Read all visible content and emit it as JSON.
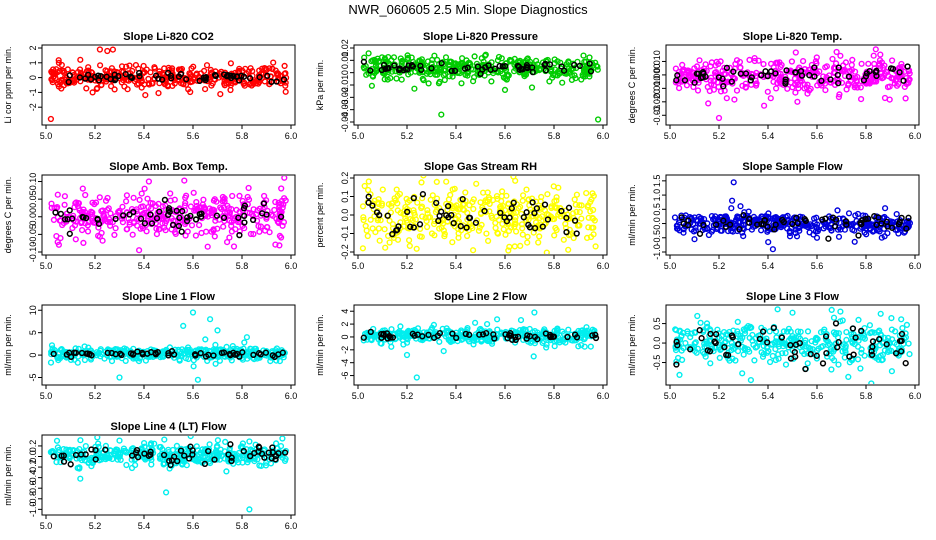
{
  "title": "NWR_060605  2.5 Min. Slope Diagnostics",
  "chart_data": [
    {
      "type": "scatter",
      "title": "Slope Li-820 CO2",
      "ylabel": "Li cor ppm per min.",
      "color": "#ff0000",
      "xlim": [
        5.0,
        6.0
      ],
      "ylim": [
        -3.0,
        2.0
      ],
      "xticks": [
        "5.0",
        "5.2",
        "5.4",
        "5.6",
        "5.8",
        "6.0"
      ],
      "yticks": [
        {
          "v": -2,
          "l": "-2"
        },
        {
          "v": -1,
          "l": "-1"
        },
        {
          "v": 0,
          "l": "0"
        },
        {
          "v": 1,
          "l": "1"
        },
        {
          "v": 2,
          "l": "2"
        }
      ],
      "center": 0.0,
      "spread": 0.35,
      "spread_black": 0.15,
      "outliers": [
        [
          5.02,
          -2.8
        ],
        [
          5.22,
          1.9
        ],
        [
          5.25,
          1.8
        ],
        [
          5.19,
          -1.0
        ],
        [
          5.28,
          -0.8
        ],
        [
          5.14,
          1.2
        ],
        [
          5.32,
          -0.6
        ]
      ]
    },
    {
      "type": "scatter",
      "title": "Slope Li-820 Pressure",
      "ylabel": "kPa per min.",
      "color": "#00cc00",
      "xlim": [
        5.0,
        6.0
      ],
      "ylim": [
        -0.04,
        0.02
      ],
      "xticks": [
        "5.0",
        "5.2",
        "5.4",
        "5.6",
        "5.8",
        "6.0"
      ],
      "yticks": [
        {
          "v": -0.04,
          "l": "-0.04"
        },
        {
          "v": -0.03,
          "l": "-0.03"
        },
        {
          "v": -0.02,
          "l": "-0.02"
        },
        {
          "v": -0.01,
          "l": "-0.01"
        },
        {
          "v": 0,
          "l": "0"
        },
        {
          "v": 0.01,
          "l": "0.01"
        },
        {
          "v": 0.02,
          "l": "0.02"
        }
      ],
      "center": 0.004,
      "spread": 0.005,
      "spread_black": 0.002,
      "outliers": [
        [
          5.34,
          -0.034
        ],
        [
          5.98,
          -0.038
        ],
        [
          5.23,
          -0.013
        ],
        [
          5.71,
          -0.012
        ],
        [
          5.6,
          -0.014
        ]
      ]
    },
    {
      "type": "scatter",
      "title": "Slope Li-820 Temp.",
      "ylabel": "degrees C per min.",
      "color": "#ff00ff",
      "xlim": [
        5.0,
        6.0
      ],
      "ylim": [
        -0.035,
        0.02
      ],
      "xticks": [
        "5.0",
        "5.2",
        "5.4",
        "5.6",
        "5.8",
        "6.0"
      ],
      "yticks": [
        {
          "v": -0.03,
          "l": "-0.03"
        },
        {
          "v": -0.02,
          "l": "-0.020"
        },
        {
          "v": -0.01,
          "l": "-0.010"
        },
        {
          "v": 0,
          "l": "0.000"
        },
        {
          "v": 0.01,
          "l": "0.010"
        }
      ],
      "center": 0.0,
      "spread": 0.006,
      "spread_black": 0.003,
      "outliers": [
        [
          5.2,
          -0.032
        ],
        [
          5.84,
          0.019
        ],
        [
          5.68,
          0.017
        ],
        [
          5.78,
          -0.018
        ],
        [
          5.52,
          -0.02
        ]
      ]
    },
    {
      "type": "scatter",
      "title": "Slope Amb. Box Temp.",
      "ylabel": "degrees C per min.",
      "color": "#ff00ff",
      "xlim": [
        5.0,
        6.0
      ],
      "ylim": [
        -0.1,
        0.11
      ],
      "xticks": [
        "5.0",
        "5.2",
        "5.4",
        "5.6",
        "5.8",
        "6.0"
      ],
      "yticks": [
        {
          "v": -0.1,
          "l": "-0.10"
        },
        {
          "v": -0.05,
          "l": "-0.05"
        },
        {
          "v": 0,
          "l": "0.00"
        },
        {
          "v": 0.05,
          "l": "0.05"
        },
        {
          "v": 0.1,
          "l": "0.10"
        }
      ],
      "center": 0.0,
      "spread": 0.03,
      "spread_black": 0.02,
      "outliers": [
        [
          5.42,
          0.1
        ],
        [
          5.38,
          -0.095
        ],
        [
          5.66,
          -0.085
        ],
        [
          5.15,
          0.08
        ]
      ]
    },
    {
      "type": "scatter",
      "title": "Slope Gas Stream RH",
      "ylabel": "percent per min.",
      "color": "#ffff00",
      "xlim": [
        5.0,
        6.0
      ],
      "ylim": [
        -0.2,
        0.2
      ],
      "xticks": [
        "5.0",
        "5.2",
        "5.4",
        "5.6",
        "5.8",
        "6.0"
      ],
      "yticks": [
        {
          "v": -0.2,
          "l": "-0.2"
        },
        {
          "v": -0.1,
          "l": "-0.1"
        },
        {
          "v": 0,
          "l": "0.0"
        },
        {
          "v": 0.1,
          "l": "0.1"
        },
        {
          "v": 0.2,
          "l": "0.2"
        }
      ],
      "center": 0.0,
      "spread": 0.08,
      "spread_black": 0.06,
      "outliers": [
        [
          5.02,
          -0.18
        ],
        [
          5.47,
          -0.19
        ],
        [
          5.97,
          -0.17
        ],
        [
          5.36,
          0.18
        ]
      ]
    },
    {
      "type": "scatter",
      "title": "Slope Sample Flow",
      "ylabel": "ml/min per min.",
      "color": "#0000dd",
      "xlim": [
        5.0,
        6.0
      ],
      "ylim": [
        -1.0,
        1.6
      ],
      "xticks": [
        "5.0",
        "5.2",
        "5.4",
        "5.6",
        "5.8",
        "6.0"
      ],
      "yticks": [
        {
          "v": -1,
          "l": "-1.0"
        },
        {
          "v": -0.5,
          "l": "-0.5"
        },
        {
          "v": 0,
          "l": "0.0"
        },
        {
          "v": 0.5,
          "l": "0.5"
        },
        {
          "v": 1,
          "l": "1.0"
        },
        {
          "v": 1.5,
          "l": "1.5"
        }
      ],
      "center": 0.0,
      "spread": 0.18,
      "spread_black": 0.15,
      "outliers": [
        [
          5.26,
          1.45
        ],
        [
          5.42,
          -0.9
        ],
        [
          5.1,
          -0.55
        ],
        [
          5.6,
          -0.5
        ]
      ]
    },
    {
      "type": "scatter",
      "title": "Slope Line 1 Flow",
      "ylabel": "ml/min per min.",
      "color": "#00eeee",
      "xlim": [
        5.0,
        6.0
      ],
      "ylim": [
        -6.0,
        10.5
      ],
      "xticks": [
        "5.0",
        "5.2",
        "5.4",
        "5.6",
        "5.8",
        "6.0"
      ],
      "yticks": [
        {
          "v": -5,
          "l": "-5"
        },
        {
          "v": 0,
          "l": "0"
        },
        {
          "v": 5,
          "l": "5"
        },
        {
          "v": 10,
          "l": "10"
        }
      ],
      "center": 0.3,
      "spread": 0.7,
      "spread_black": 0.3,
      "outliers": [
        [
          5.6,
          9.5
        ],
        [
          5.67,
          8.0
        ],
        [
          5.56,
          6.5
        ],
        [
          5.3,
          -5.0
        ],
        [
          5.62,
          -5.5
        ],
        [
          5.82,
          4.0
        ],
        [
          5.65,
          3.5
        ],
        [
          5.7,
          5.5
        ]
      ]
    },
    {
      "type": "scatter",
      "title": "Slope Line 2 Flow",
      "ylabel": "ml/min per min.",
      "color": "#00eeee",
      "xlim": [
        5.0,
        6.0
      ],
      "ylim": [
        -7.0,
        4.5
      ],
      "xticks": [
        "5.0",
        "5.2",
        "5.4",
        "5.6",
        "5.8",
        "6.0"
      ],
      "yticks": [
        {
          "v": -6,
          "l": "-6"
        },
        {
          "v": -4,
          "l": "-4"
        },
        {
          "v": -2,
          "l": "-2"
        },
        {
          "v": 0,
          "l": "0"
        },
        {
          "v": 2,
          "l": "2"
        },
        {
          "v": 4,
          "l": "4"
        }
      ],
      "center": 0.2,
      "spread": 0.6,
      "spread_black": 0.3,
      "outliers": [
        [
          5.24,
          -6.3
        ],
        [
          5.72,
          3.8
        ],
        [
          5.2,
          -2.8
        ],
        [
          5.35,
          -2.2
        ]
      ]
    },
    {
      "type": "scatter",
      "title": "Slope Line 3 Flow",
      "ylabel": "ml/min per min.",
      "color": "#00eeee",
      "xlim": [
        5.0,
        6.0
      ],
      "ylim": [
        -1.0,
        0.9
      ],
      "xticks": [
        "5.0",
        "5.2",
        "5.4",
        "5.6",
        "5.8",
        "6.0"
      ],
      "yticks": [
        {
          "v": -0.5,
          "l": "-0.5"
        },
        {
          "v": 0,
          "l": "0.0"
        },
        {
          "v": 0.5,
          "l": "0.5"
        }
      ],
      "center": 0.0,
      "spread": 0.28,
      "spread_black": 0.25,
      "outliers": [
        [
          5.66,
          0.85
        ],
        [
          5.5,
          0.78
        ],
        [
          5.33,
          -0.95
        ],
        [
          5.86,
          0.75
        ]
      ]
    },
    {
      "type": "scatter",
      "title": "Slope Line 4 (LT) Flow",
      "ylabel": "ml/min per min.",
      "color": "#00eeee",
      "xlim": [
        5.0,
        6.0
      ],
      "ylim": [
        -1.05,
        0.35
      ],
      "xticks": [
        "5.0",
        "5.2",
        "5.4",
        "5.6",
        "5.8",
        "6.0"
      ],
      "yticks": [
        {
          "v": -1,
          "l": "-1.0"
        },
        {
          "v": -0.8,
          "l": "-0.8"
        },
        {
          "v": -0.6,
          "l": "-0.6"
        },
        {
          "v": -0.4,
          "l": "-0.4"
        },
        {
          "v": -0.2,
          "l": "-0.2"
        },
        {
          "v": 0,
          "l": "0.0"
        },
        {
          "v": 0.2,
          "l": "0.2"
        }
      ],
      "center": 0.02,
      "spread": 0.1,
      "spread_black": 0.08,
      "outliers": [
        [
          5.83,
          -1.0
        ],
        [
          5.49,
          -0.68
        ],
        [
          5.14,
          -0.42
        ],
        [
          5.3,
          0.3
        ]
      ]
    }
  ]
}
